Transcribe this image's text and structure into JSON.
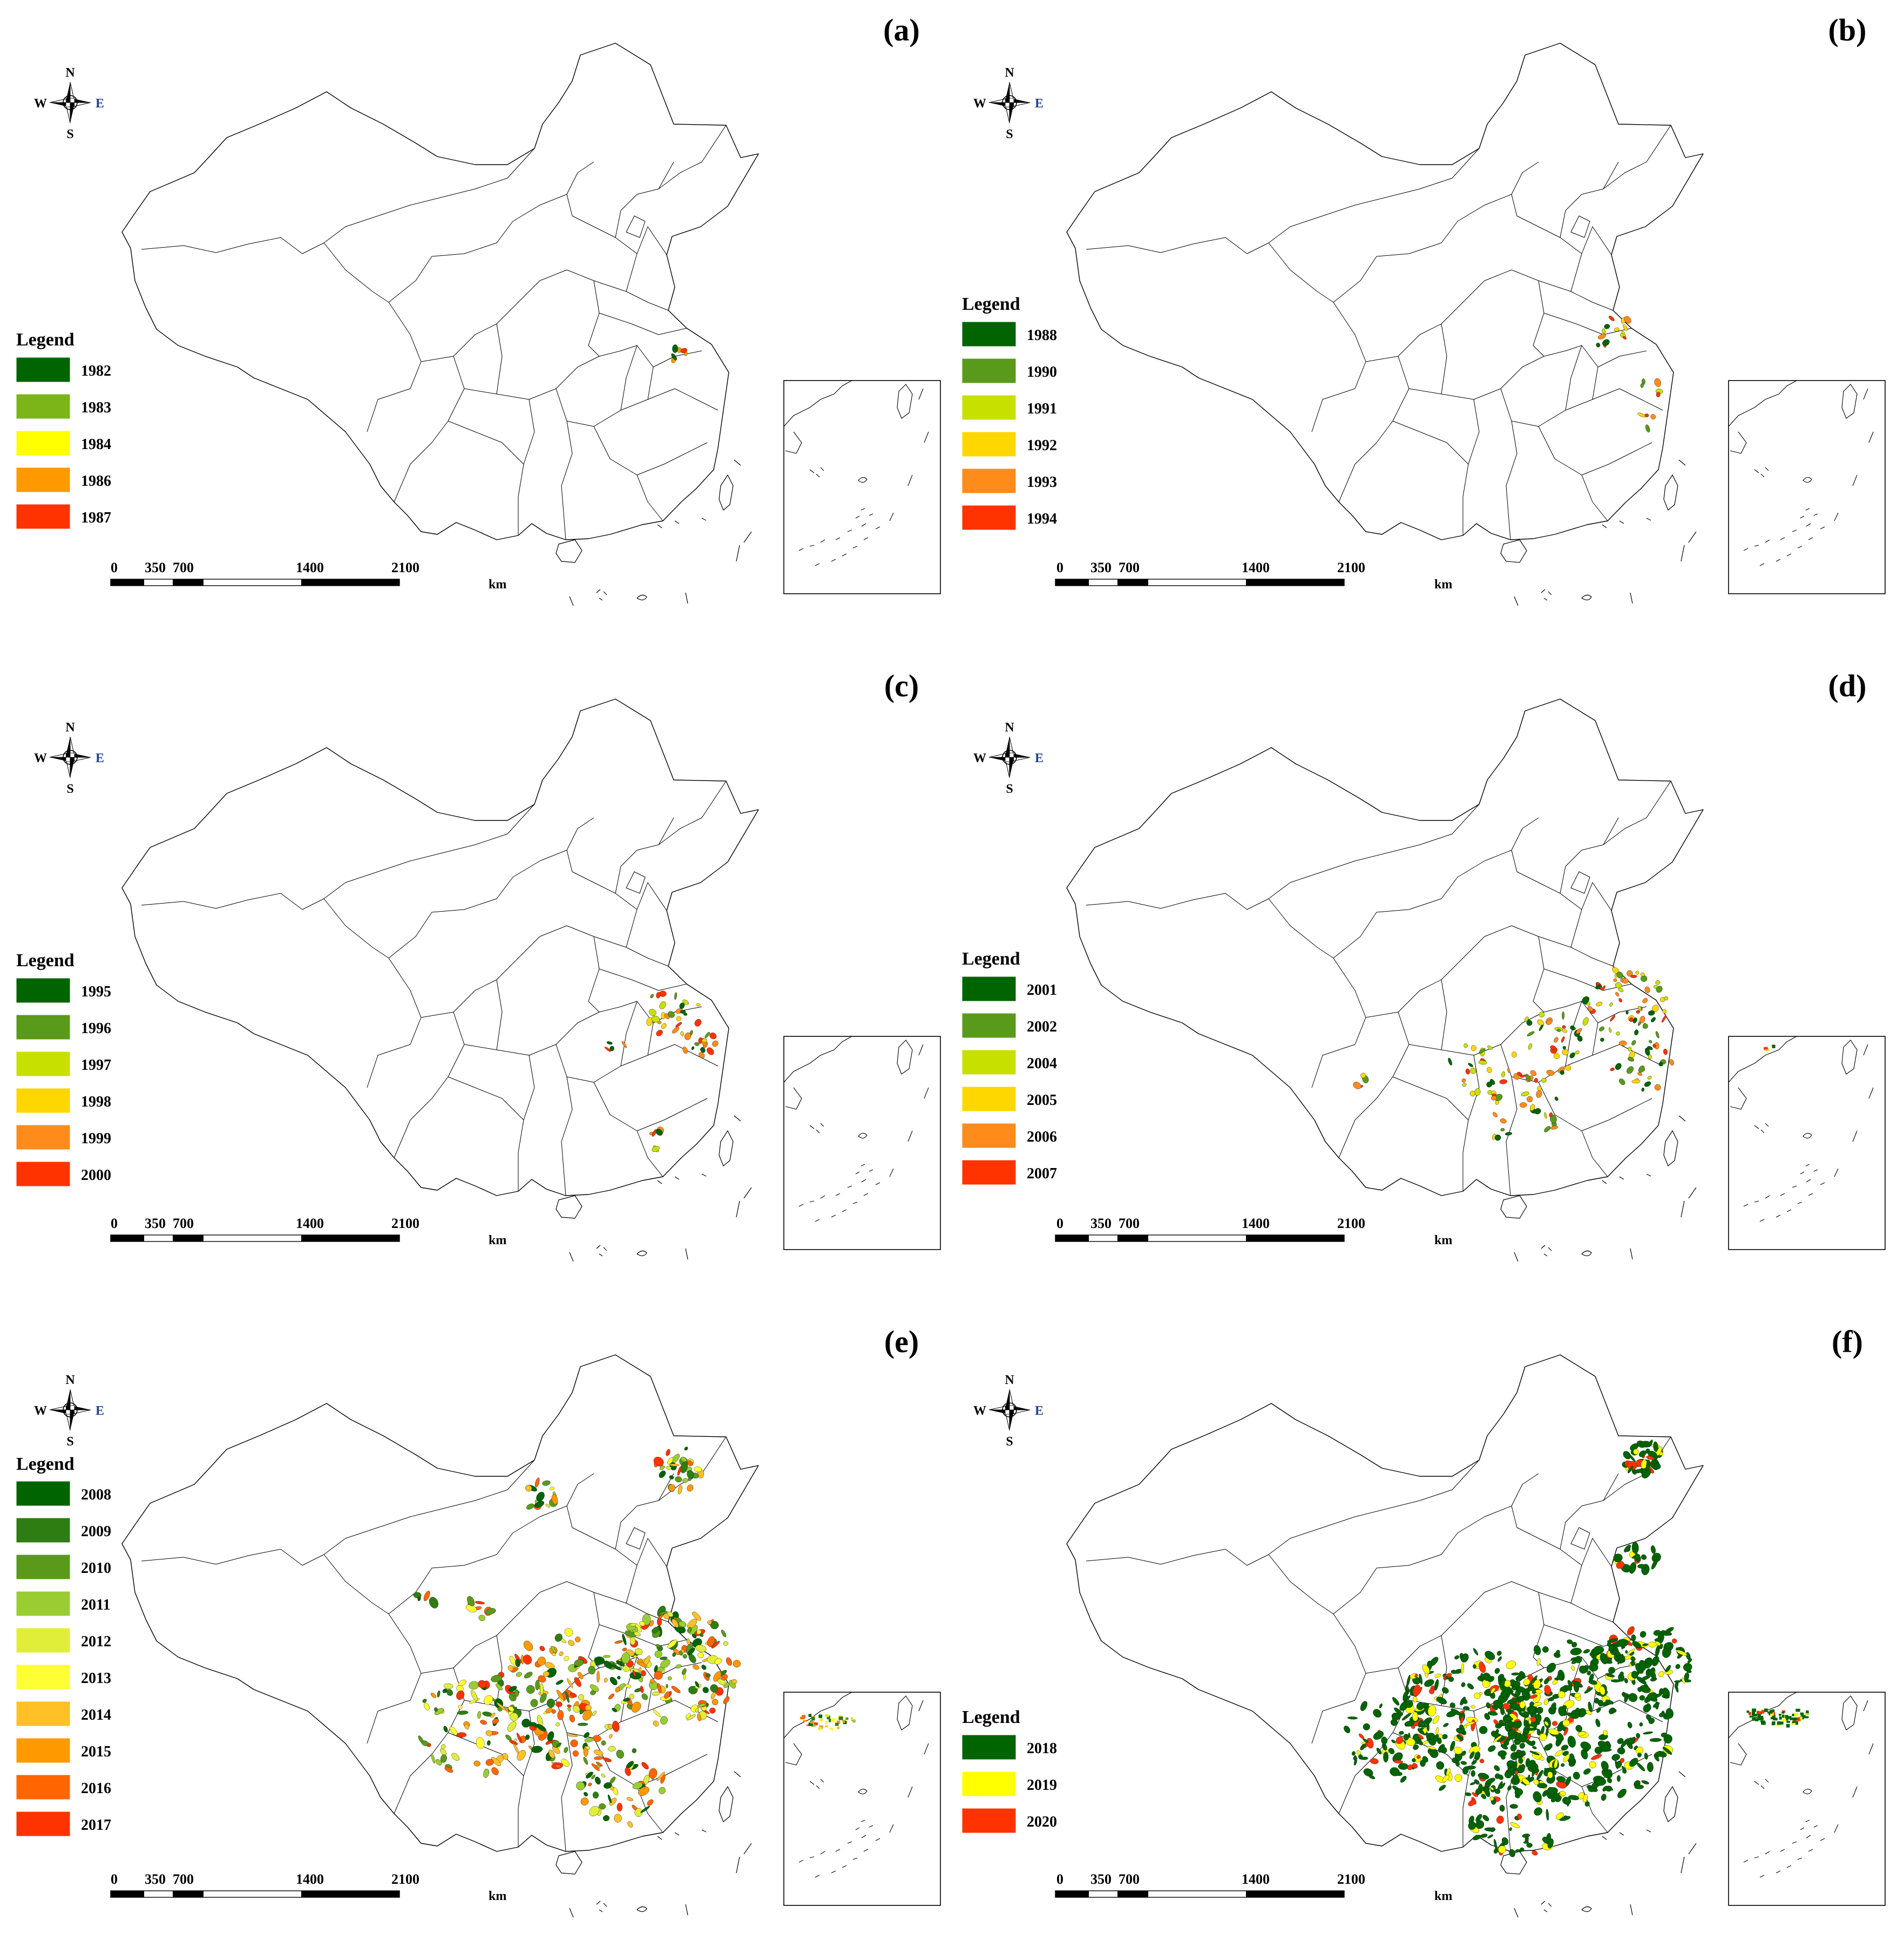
{
  "panels": [
    {
      "label": "(a)",
      "legend_title": "Legend",
      "legend": [
        {
          "year": "1982",
          "color": "#006400"
        },
        {
          "year": "1983",
          "color": "#7cb518"
        },
        {
          "year": "1984",
          "color": "#ffff00"
        },
        {
          "year": "1986",
          "color": "#ff9900"
        },
        {
          "year": "1987",
          "color": "#ff3300"
        }
      ]
    },
    {
      "label": "(b)",
      "legend_title": "Legend",
      "legend": [
        {
          "year": "1988",
          "color": "#006400"
        },
        {
          "year": "1990",
          "color": "#5a9a1a"
        },
        {
          "year": "1991",
          "color": "#c8e000"
        },
        {
          "year": "1992",
          "color": "#ffd700"
        },
        {
          "year": "1993",
          "color": "#ff8c1a"
        },
        {
          "year": "1994",
          "color": "#ff3300"
        }
      ]
    },
    {
      "label": "(c)",
      "legend_title": "Legend",
      "legend": [
        {
          "year": "1995",
          "color": "#006400"
        },
        {
          "year": "1996",
          "color": "#5a9a1a"
        },
        {
          "year": "1997",
          "color": "#c8e000"
        },
        {
          "year": "1998",
          "color": "#ffd700"
        },
        {
          "year": "1999",
          "color": "#ff8c1a"
        },
        {
          "year": "2000",
          "color": "#ff3300"
        }
      ]
    },
    {
      "label": "(d)",
      "legend_title": "Legend",
      "legend": [
        {
          "year": "2001",
          "color": "#006400"
        },
        {
          "year": "2002",
          "color": "#5a9a1a"
        },
        {
          "year": "2004",
          "color": "#c8e000"
        },
        {
          "year": "2005",
          "color": "#ffd700"
        },
        {
          "year": "2006",
          "color": "#ff8c1a"
        },
        {
          "year": "2007",
          "color": "#ff3300"
        }
      ]
    },
    {
      "label": "(e)",
      "legend_title": "Legend",
      "legend": [
        {
          "year": "2008",
          "color": "#006400"
        },
        {
          "year": "2009",
          "color": "#2e7d12"
        },
        {
          "year": "2010",
          "color": "#5a9a1a"
        },
        {
          "year": "2011",
          "color": "#9acd32"
        },
        {
          "year": "2012",
          "color": "#e0ee3a"
        },
        {
          "year": "2013",
          "color": "#ffff33"
        },
        {
          "year": "2014",
          "color": "#ffc125"
        },
        {
          "year": "2015",
          "color": "#ff9900"
        },
        {
          "year": "2016",
          "color": "#ff6600"
        },
        {
          "year": "2017",
          "color": "#ff3300"
        }
      ]
    },
    {
      "label": "(f)",
      "legend_title": "Legend",
      "legend": [
        {
          "year": "2018",
          "color": "#006400"
        },
        {
          "year": "2019",
          "color": "#ffff00"
        },
        {
          "year": "2020",
          "color": "#ff3300"
        }
      ]
    }
  ],
  "compass": {
    "n": "N",
    "s": "S",
    "e": "E",
    "w": "W"
  },
  "scale_bar": {
    "ticks": [
      "0",
      "350",
      "700",
      "1400",
      "2100"
    ],
    "unit": "km"
  }
}
